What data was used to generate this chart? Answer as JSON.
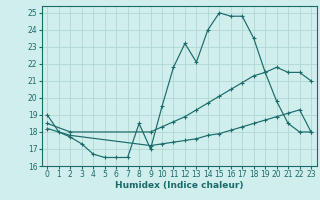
{
  "xlabel": "Humidex (Indice chaleur)",
  "bg_color": "#d0eeec",
  "line_color": "#1a6b6b",
  "grid_color": "#b0d8d4",
  "xlim": [
    -0.5,
    23.5
  ],
  "ylim": [
    16,
    25.4
  ],
  "xticks": [
    0,
    1,
    2,
    3,
    4,
    5,
    6,
    7,
    8,
    9,
    10,
    11,
    12,
    13,
    14,
    15,
    16,
    17,
    18,
    19,
    20,
    21,
    22,
    23
  ],
  "yticks": [
    16,
    17,
    18,
    19,
    20,
    21,
    22,
    23,
    24,
    25
  ],
  "line1_x": [
    0,
    1,
    2,
    3,
    4,
    5,
    6,
    7,
    8,
    9,
    10,
    11,
    12,
    13,
    14,
    15,
    16,
    17,
    18,
    19,
    20,
    21,
    22,
    23
  ],
  "line1_y": [
    19.0,
    18.0,
    17.7,
    17.3,
    16.7,
    16.5,
    16.5,
    16.5,
    18.5,
    17.0,
    19.5,
    21.8,
    23.2,
    22.1,
    24.0,
    25.0,
    24.8,
    24.8,
    23.5,
    21.5,
    19.8,
    18.5,
    18.0,
    18.0
  ],
  "line2_x": [
    0,
    2,
    9,
    10,
    11,
    12,
    13,
    14,
    15,
    16,
    17,
    18,
    19,
    20,
    21,
    22,
    23
  ],
  "line2_y": [
    18.5,
    18.0,
    18.0,
    18.3,
    18.6,
    18.9,
    19.3,
    19.7,
    20.1,
    20.5,
    20.9,
    21.3,
    21.5,
    21.8,
    21.5,
    21.5,
    21.0
  ],
  "line3_x": [
    0,
    2,
    9,
    10,
    11,
    12,
    13,
    14,
    15,
    16,
    17,
    18,
    19,
    20,
    21,
    22,
    23
  ],
  "line3_y": [
    18.2,
    17.8,
    17.2,
    17.3,
    17.4,
    17.5,
    17.6,
    17.8,
    17.9,
    18.1,
    18.3,
    18.5,
    18.7,
    18.9,
    19.1,
    19.3,
    18.0
  ]
}
